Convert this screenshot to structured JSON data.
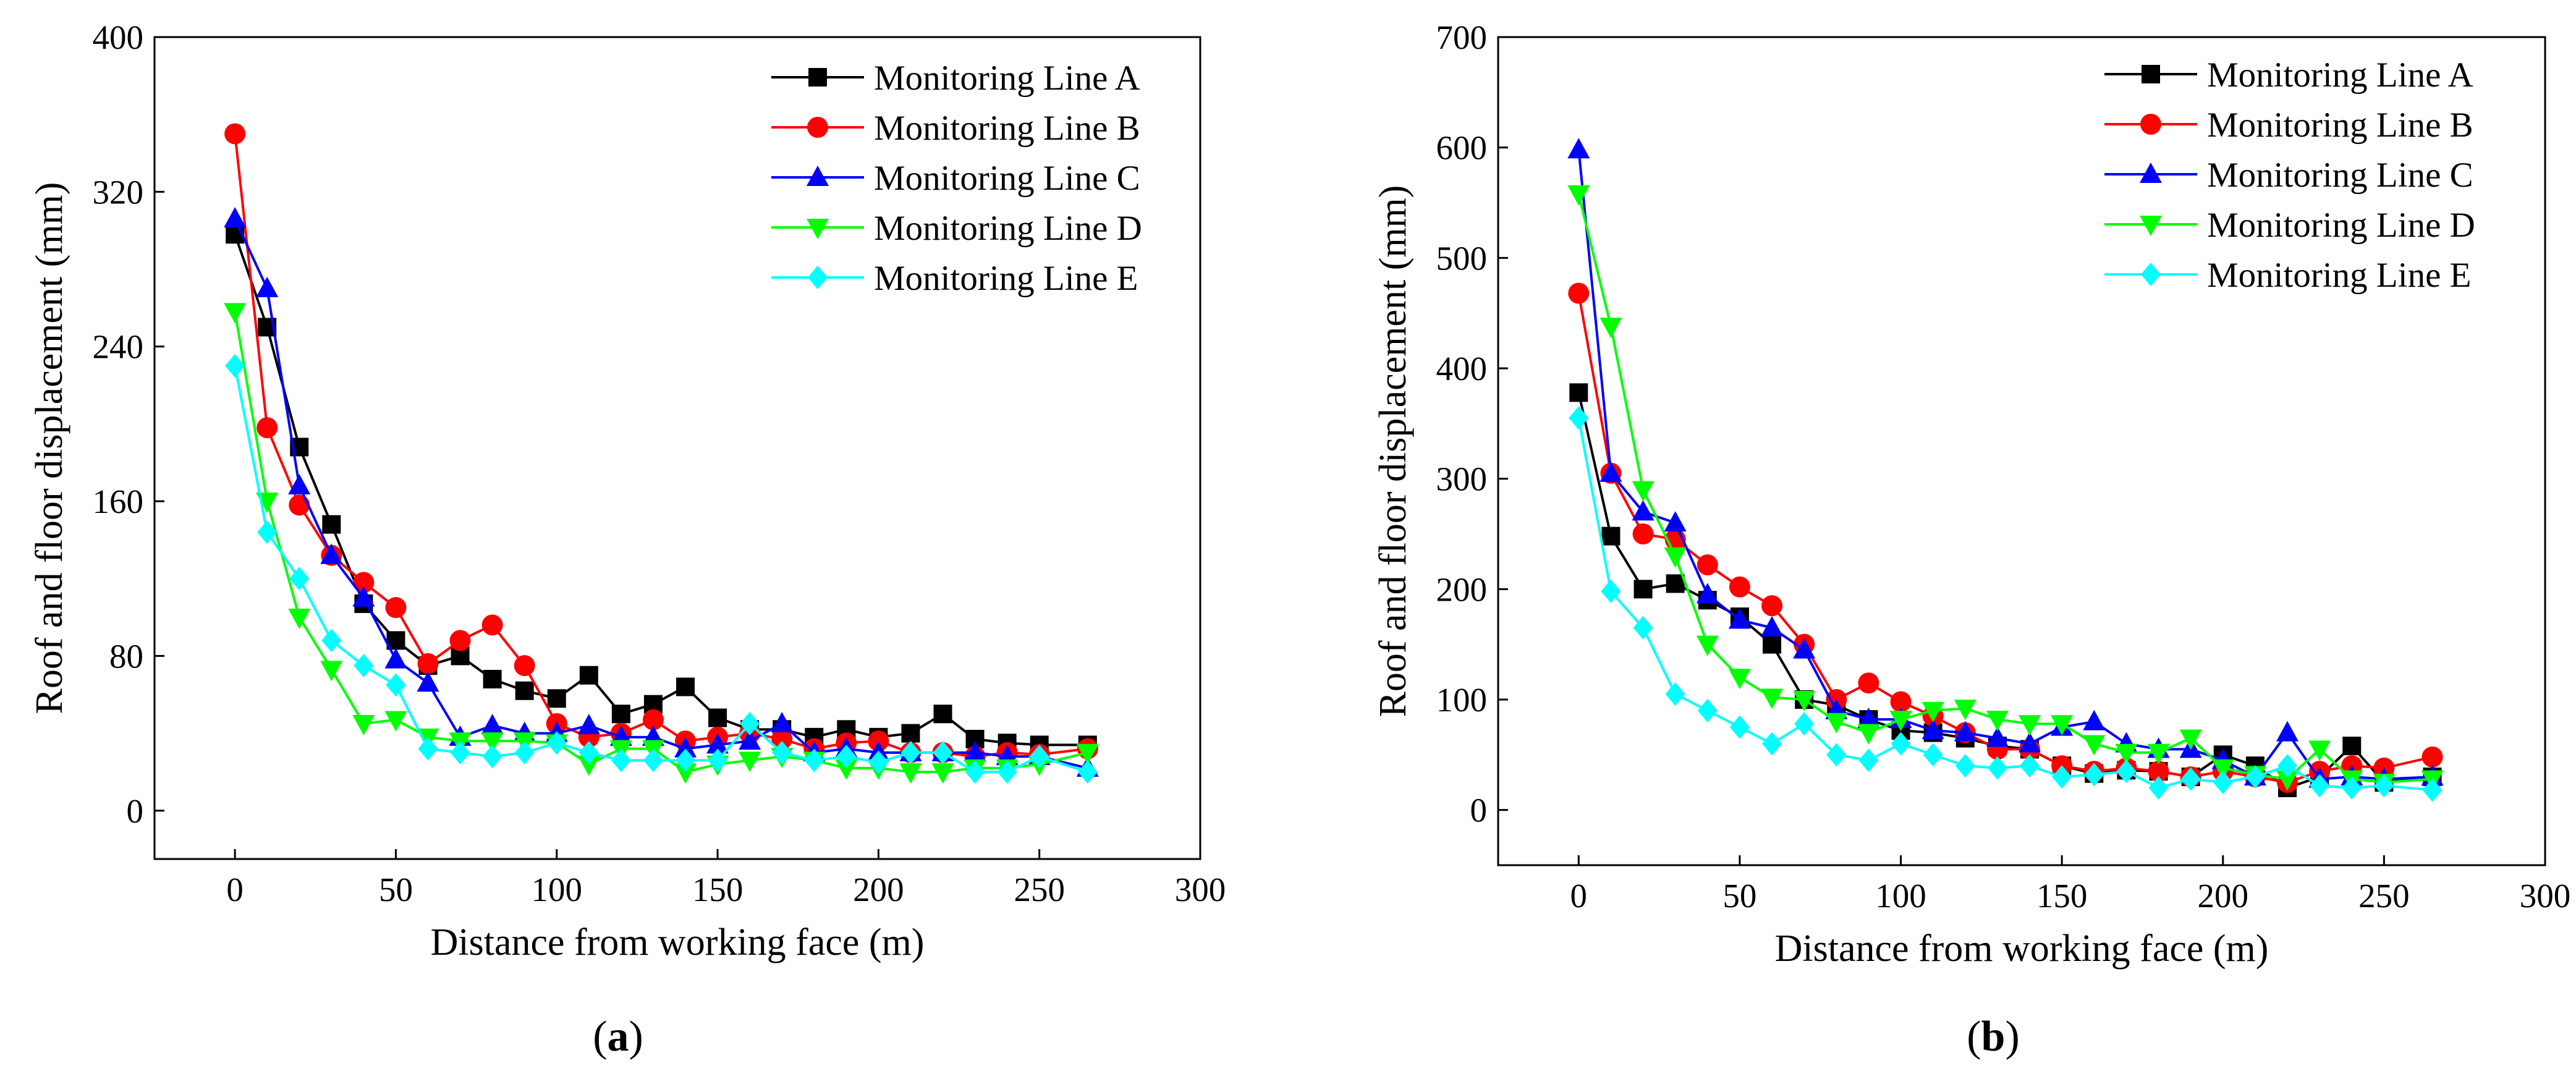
{
  "chart_data": [
    {
      "type": "line",
      "caption": "(a)",
      "caption_letter": "a",
      "xlabel": "Distance from working face (m)",
      "ylabel": "Roof and floor displacement (mm)",
      "xlim": [
        -25,
        300
      ],
      "ylim": [
        -25,
        400
      ],
      "xticks": [
        0,
        50,
        100,
        150,
        200,
        250,
        300
      ],
      "yticks": [
        0,
        80,
        160,
        240,
        320,
        400
      ],
      "legend_position": "top-right",
      "x": [
        0,
        10,
        20,
        30,
        40,
        50,
        60,
        70,
        80,
        90,
        100,
        110,
        120,
        130,
        140,
        150,
        160,
        170,
        180,
        190,
        200,
        210,
        220,
        230,
        240,
        250,
        265
      ],
      "series": [
        {
          "name": "Monitoring Line A",
          "color": "#000000",
          "marker": "square",
          "values": [
            298,
            250,
            188,
            148,
            107,
            88,
            75,
            80,
            68,
            62,
            58,
            70,
            50,
            55,
            64,
            48,
            42,
            42,
            38,
            42,
            38,
            40,
            50,
            37,
            35,
            34,
            34
          ]
        },
        {
          "name": "Monitoring Line B",
          "color": "#ff0000",
          "marker": "circle",
          "values": [
            350,
            198,
            158,
            132,
            118,
            105,
            76,
            88,
            96,
            75,
            45,
            38,
            40,
            47,
            36,
            38,
            40,
            37,
            32,
            35,
            36,
            30,
            30,
            28,
            30,
            29,
            32
          ]
        },
        {
          "name": "Monitoring Line C",
          "color": "#0000ff",
          "marker": "triangle-up",
          "values": [
            306,
            270,
            168,
            132,
            110,
            78,
            66,
            38,
            44,
            40,
            40,
            44,
            38,
            38,
            32,
            34,
            36,
            45,
            30,
            32,
            30,
            30,
            30,
            30,
            28,
            28,
            22
          ]
        },
        {
          "name": "Monitoring Line D",
          "color": "#00ff00",
          "marker": "triangle-down",
          "values": [
            258,
            160,
            100,
            73,
            45,
            47,
            38,
            36,
            36,
            36,
            35,
            24,
            32,
            32,
            20,
            24,
            26,
            28,
            26,
            22,
            22,
            20,
            20,
            22,
            22,
            24,
            30
          ]
        },
        {
          "name": "Monitoring Line E",
          "color": "#00ffff",
          "marker": "diamond",
          "values": [
            230,
            144,
            120,
            88,
            75,
            65,
            32,
            30,
            28,
            30,
            35,
            30,
            26,
            26,
            26,
            26,
            45,
            30,
            26,
            28,
            25,
            30,
            30,
            20,
            20,
            28,
            20
          ]
        }
      ]
    },
    {
      "type": "line",
      "caption": "(b)",
      "caption_letter": "b",
      "xlabel": "Distance from working face (m)",
      "ylabel": "Roof and floor displacement (mm)",
      "xlim": [
        -25,
        300
      ],
      "ylim": [
        -50,
        700
      ],
      "xticks": [
        0,
        50,
        100,
        150,
        200,
        250,
        300
      ],
      "yticks": [
        0,
        100,
        200,
        300,
        400,
        500,
        600,
        700
      ],
      "legend_position": "top-right",
      "x": [
        0,
        10,
        20,
        30,
        40,
        50,
        60,
        70,
        80,
        90,
        100,
        110,
        120,
        130,
        140,
        150,
        160,
        170,
        180,
        190,
        200,
        210,
        220,
        230,
        240,
        250,
        265
      ],
      "series": [
        {
          "name": "Monitoring Line A",
          "color": "#000000",
          "marker": "square",
          "values": [
            378,
            248,
            200,
            205,
            190,
            175,
            150,
            100,
            95,
            82,
            72,
            70,
            65,
            58,
            55,
            40,
            33,
            36,
            35,
            30,
            50,
            40,
            20,
            30,
            58,
            25,
            30
          ]
        },
        {
          "name": "Monitoring Line B",
          "color": "#ff0000",
          "marker": "circle",
          "values": [
            468,
            305,
            250,
            245,
            222,
            202,
            185,
            150,
            100,
            115,
            98,
            85,
            70,
            55,
            55,
            40,
            35,
            38,
            35,
            30,
            35,
            30,
            25,
            35,
            40,
            38,
            48
          ]
        },
        {
          "name": "Monitoring Line C",
          "color": "#0000ff",
          "marker": "triangle-up",
          "values": [
            598,
            305,
            270,
            260,
            195,
            172,
            165,
            145,
            90,
            82,
            82,
            72,
            70,
            65,
            60,
            75,
            80,
            60,
            55,
            55,
            45,
            30,
            70,
            28,
            30,
            28,
            30
          ]
        },
        {
          "name": "Monitoring Line D",
          "color": "#00ff00",
          "marker": "triangle-down",
          "values": [
            558,
            438,
            290,
            230,
            150,
            120,
            102,
            100,
            80,
            70,
            82,
            90,
            92,
            82,
            78,
            78,
            60,
            52,
            52,
            65,
            38,
            32,
            28,
            55,
            28,
            25,
            28
          ]
        },
        {
          "name": "Monitoring Line E",
          "color": "#00ffff",
          "marker": "diamond",
          "values": [
            355,
            198,
            165,
            105,
            90,
            75,
            60,
            78,
            50,
            45,
            60,
            50,
            40,
            38,
            40,
            30,
            32,
            35,
            20,
            28,
            25,
            30,
            40,
            22,
            20,
            22,
            18
          ]
        }
      ]
    }
  ]
}
